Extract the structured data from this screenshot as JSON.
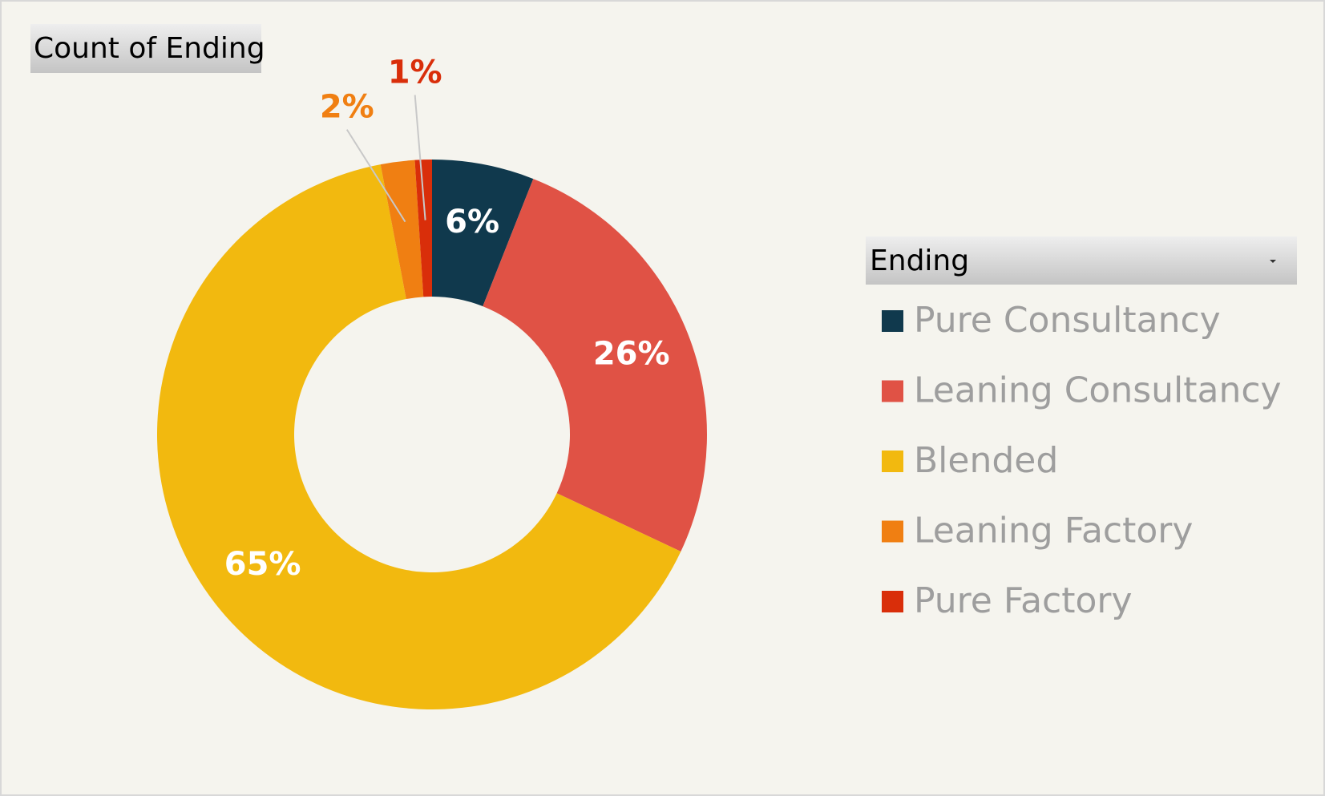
{
  "chart_data": {
    "type": "donut",
    "title": "Count of Ending",
    "legend_title": "Ending",
    "categories": [
      "Pure Consultancy",
      "Leaning Consultancy",
      "Blended",
      "Leaning Factory",
      "Pure Factory"
    ],
    "values": [
      6,
      26,
      65,
      2,
      1
    ],
    "value_labels": [
      "6%",
      "26%",
      "65%",
      "2%",
      "1%"
    ],
    "colors": [
      "#10394d",
      "#e05245",
      "#f2b90f",
      "#f07f12",
      "#d92e0a"
    ],
    "legend": "right"
  }
}
